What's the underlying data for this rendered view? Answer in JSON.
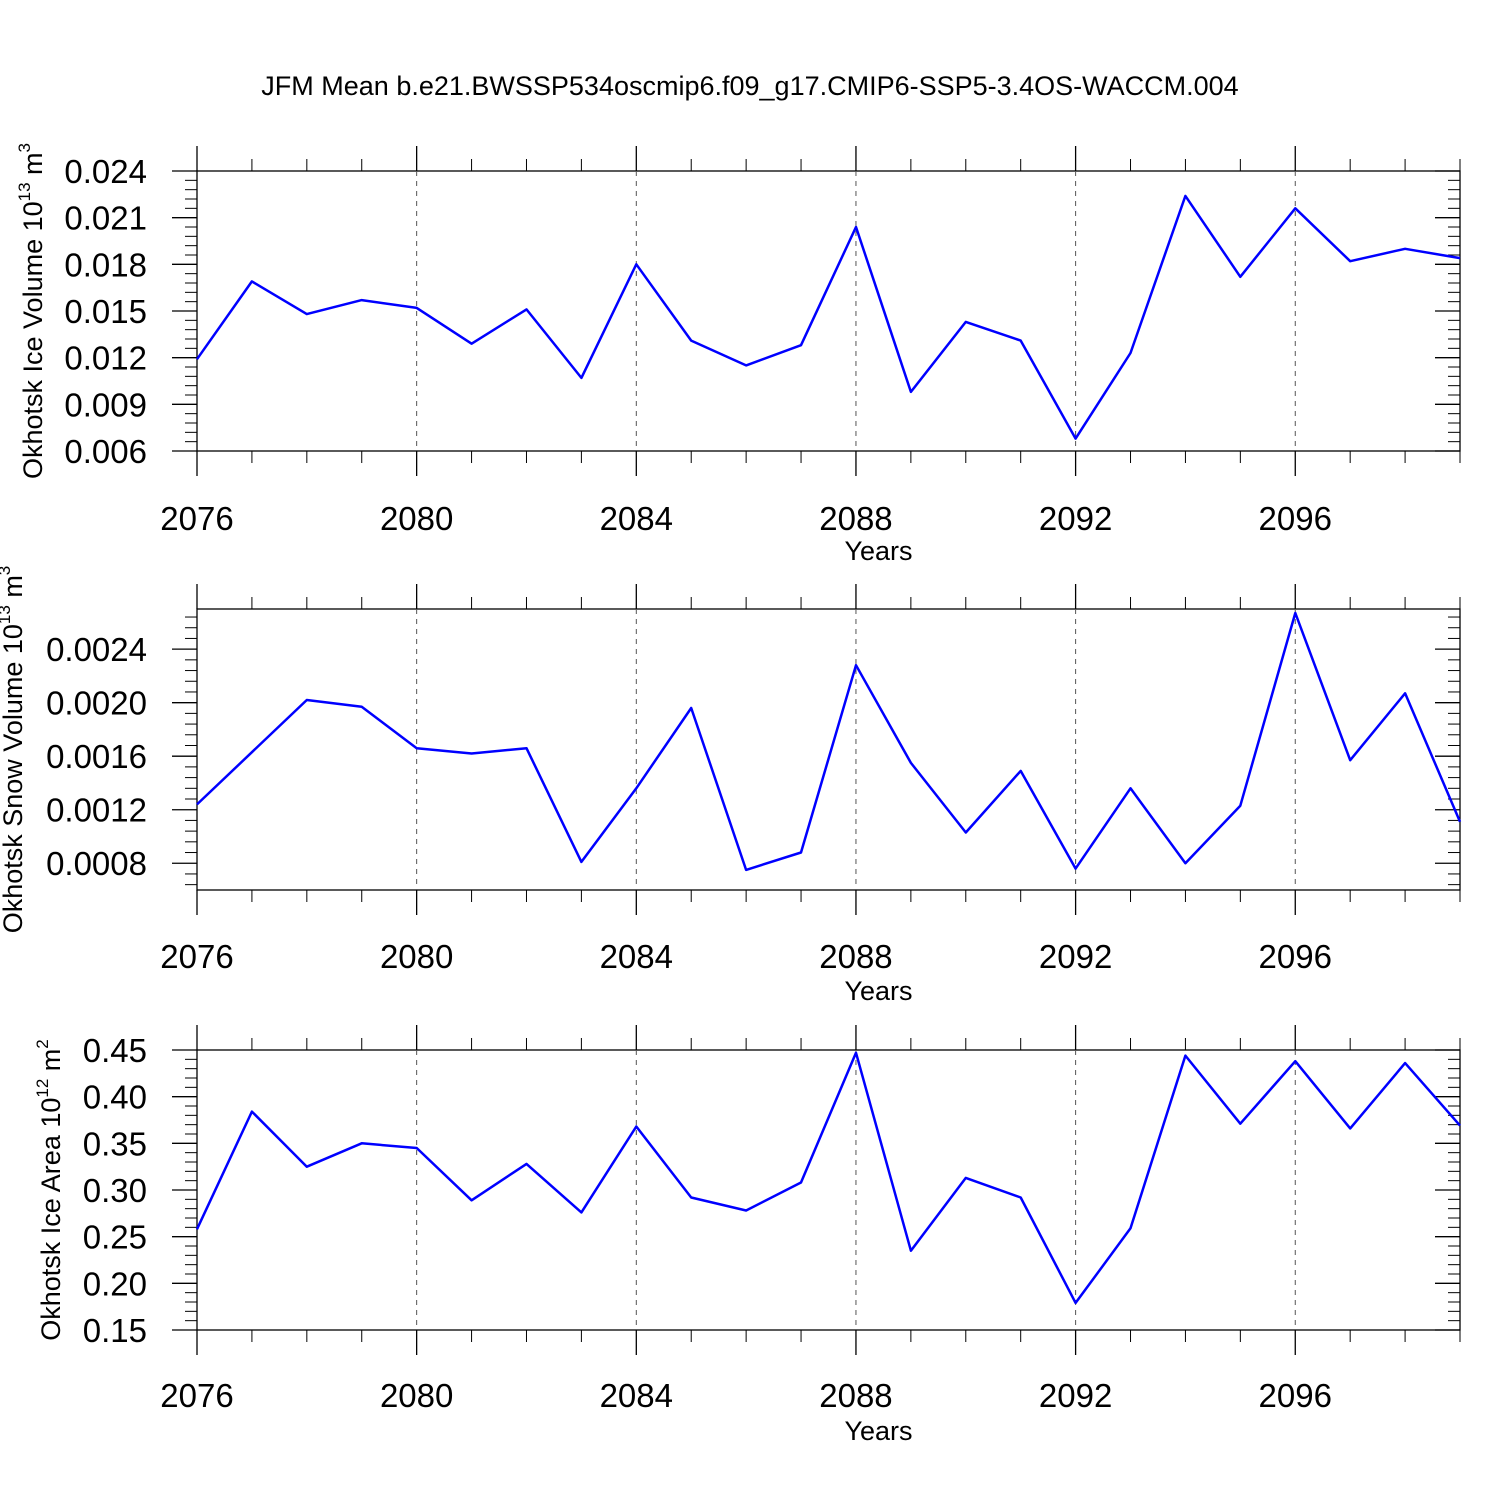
{
  "title": "JFM Mean b.e21.BWSSP534oscmip6.f09_g17.CMIP6-SSP5-3.4OS-WACCM.004",
  "chart_data": [
    {
      "type": "line",
      "title": "JFM Mean b.e21.BWSSP534oscmip6.f09_g17.CMIP6-SSP5-3.4OS-WACCM.004",
      "xlabel": "Years",
      "ylabel": "Okhotsk Ice Volume 10",
      "ylabel_sup": "13",
      "ylabel_unit": " m",
      "ylabel_unit_sup": "3",
      "xlim": [
        2076,
        2099
      ],
      "ylim": [
        0.006,
        0.024
      ],
      "xticks": [
        "2076",
        "2080",
        "2084",
        "2088",
        "2092",
        "2096"
      ],
      "yticks": [
        "0.006",
        "0.009",
        "0.012",
        "0.015",
        "0.018",
        "0.021",
        "0.024"
      ],
      "grid": "vertical dashed at major x ticks",
      "color": "#0000ff",
      "x": [
        2076,
        2077,
        2078,
        2079,
        2080,
        2081,
        2082,
        2083,
        2084,
        2085,
        2086,
        2087,
        2088,
        2089,
        2090,
        2091,
        2092,
        2093,
        2094,
        2095,
        2096,
        2097,
        2098,
        2099
      ],
      "values": [
        0.0119,
        0.0169,
        0.0148,
        0.0157,
        0.0152,
        0.0129,
        0.0151,
        0.0107,
        0.018,
        0.0131,
        0.0115,
        0.0128,
        0.0204,
        0.0098,
        0.0143,
        0.0131,
        0.0068,
        0.0123,
        0.0224,
        0.0172,
        0.0216,
        0.0182,
        0.019,
        0.0184
      ]
    },
    {
      "type": "line",
      "xlabel": "Years",
      "ylabel": "Okhotsk Snow Volume 10",
      "ylabel_sup": "13",
      "ylabel_unit": " m",
      "ylabel_unit_sup": "3",
      "xlim": [
        2076,
        2099
      ],
      "ylim": [
        0.0006,
        0.0027
      ],
      "xticks": [
        "2076",
        "2080",
        "2084",
        "2088",
        "2092",
        "2096"
      ],
      "yticks": [
        "0.0008",
        "0.0012",
        "0.0016",
        "0.0020",
        "0.0024"
      ],
      "ytick_values": [
        0.0008,
        0.0012,
        0.0016,
        0.002,
        0.0024
      ],
      "grid": "vertical dashed at major x ticks",
      "color": "#0000ff",
      "x": [
        2076,
        2077,
        2078,
        2079,
        2080,
        2081,
        2082,
        2083,
        2084,
        2085,
        2086,
        2087,
        2088,
        2089,
        2090,
        2091,
        2092,
        2093,
        2094,
        2095,
        2096,
        2097,
        2098,
        2099
      ],
      "values": [
        0.00124,
        0.00163,
        0.00202,
        0.00197,
        0.00166,
        0.00162,
        0.00166,
        0.00081,
        0.00136,
        0.00196,
        0.00075,
        0.00088,
        0.00228,
        0.00155,
        0.00103,
        0.00149,
        0.00076,
        0.00136,
        0.0008,
        0.00123,
        0.00267,
        0.00157,
        0.00207,
        0.00111
      ]
    },
    {
      "type": "line",
      "xlabel": "Years",
      "ylabel": "Okhotsk Ice Area 10",
      "ylabel_sup": "12",
      "ylabel_unit": " m",
      "ylabel_unit_sup": "2",
      "xlim": [
        2076,
        2099
      ],
      "ylim": [
        0.15,
        0.45
      ],
      "xticks": [
        "2076",
        "2080",
        "2084",
        "2088",
        "2092",
        "2096"
      ],
      "yticks": [
        "0.15",
        "0.20",
        "0.25",
        "0.30",
        "0.35",
        "0.40",
        "0.45"
      ],
      "grid": "vertical dashed at major x ticks",
      "color": "#0000ff",
      "x": [
        2076,
        2077,
        2078,
        2079,
        2080,
        2081,
        2082,
        2083,
        2084,
        2085,
        2086,
        2087,
        2088,
        2089,
        2090,
        2091,
        2092,
        2093,
        2094,
        2095,
        2096,
        2097,
        2098,
        2099
      ],
      "values": [
        0.258,
        0.384,
        0.325,
        0.35,
        0.345,
        0.289,
        0.328,
        0.276,
        0.368,
        0.292,
        0.278,
        0.308,
        0.447,
        0.235,
        0.313,
        0.292,
        0.179,
        0.259,
        0.444,
        0.371,
        0.438,
        0.366,
        0.436,
        0.369
      ]
    }
  ]
}
